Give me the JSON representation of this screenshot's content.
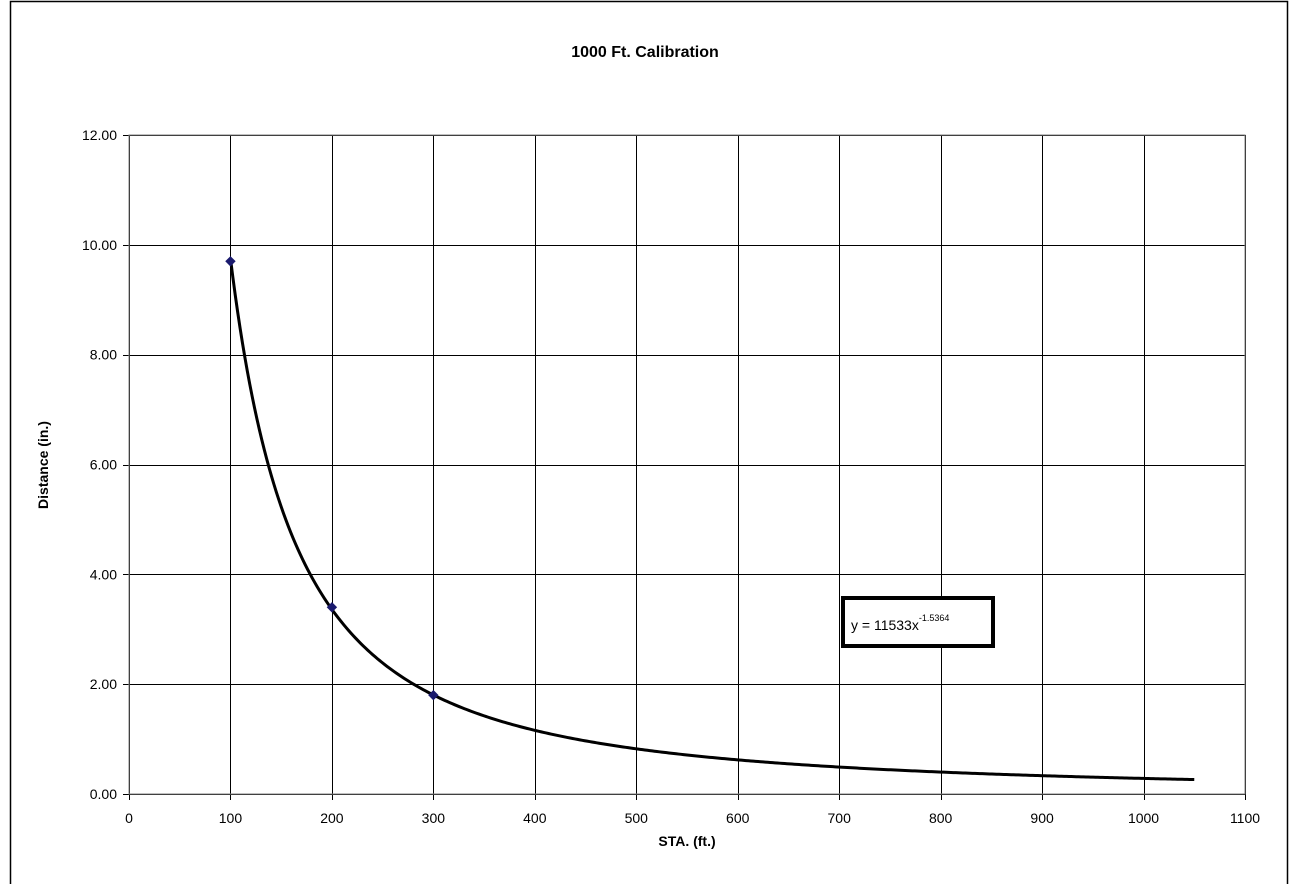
{
  "chart_data": {
    "type": "scatter",
    "title": "1000 Ft. Calibration",
    "xlabel": "STA. (ft.)",
    "ylabel": "Distance (in.)",
    "xlim": [
      0,
      1100
    ],
    "ylim": [
      0,
      12
    ],
    "x_ticks": [
      0,
      100,
      200,
      300,
      400,
      500,
      600,
      700,
      800,
      900,
      1000,
      1100
    ],
    "x_tick_labels": [
      "0",
      "100",
      "200",
      "300",
      "400",
      "500",
      "600",
      "700",
      "800",
      "900",
      "1000",
      "1100"
    ],
    "y_ticks": [
      0,
      2,
      4,
      6,
      8,
      10,
      12
    ],
    "y_tick_labels": [
      "0.00",
      "2.00",
      "4.00",
      "6.00",
      "8.00",
      "10.00",
      "12.00"
    ],
    "grid": true,
    "legend": "none",
    "series": [
      {
        "points": [
          {
            "x": 100,
            "y": 9.7
          },
          {
            "x": 200,
            "y": 3.4
          },
          {
            "x": 300,
            "y": 1.8
          }
        ],
        "marker": "diamond",
        "color": "#1a1a6e"
      }
    ],
    "trendline": {
      "type": "power",
      "coefficient": 11533,
      "exponent": -1.5364,
      "x_range": [
        100,
        1050
      ],
      "color": "#000000",
      "equation_base": "y = 11533x",
      "equation_exponent": "-1.5364"
    }
  }
}
